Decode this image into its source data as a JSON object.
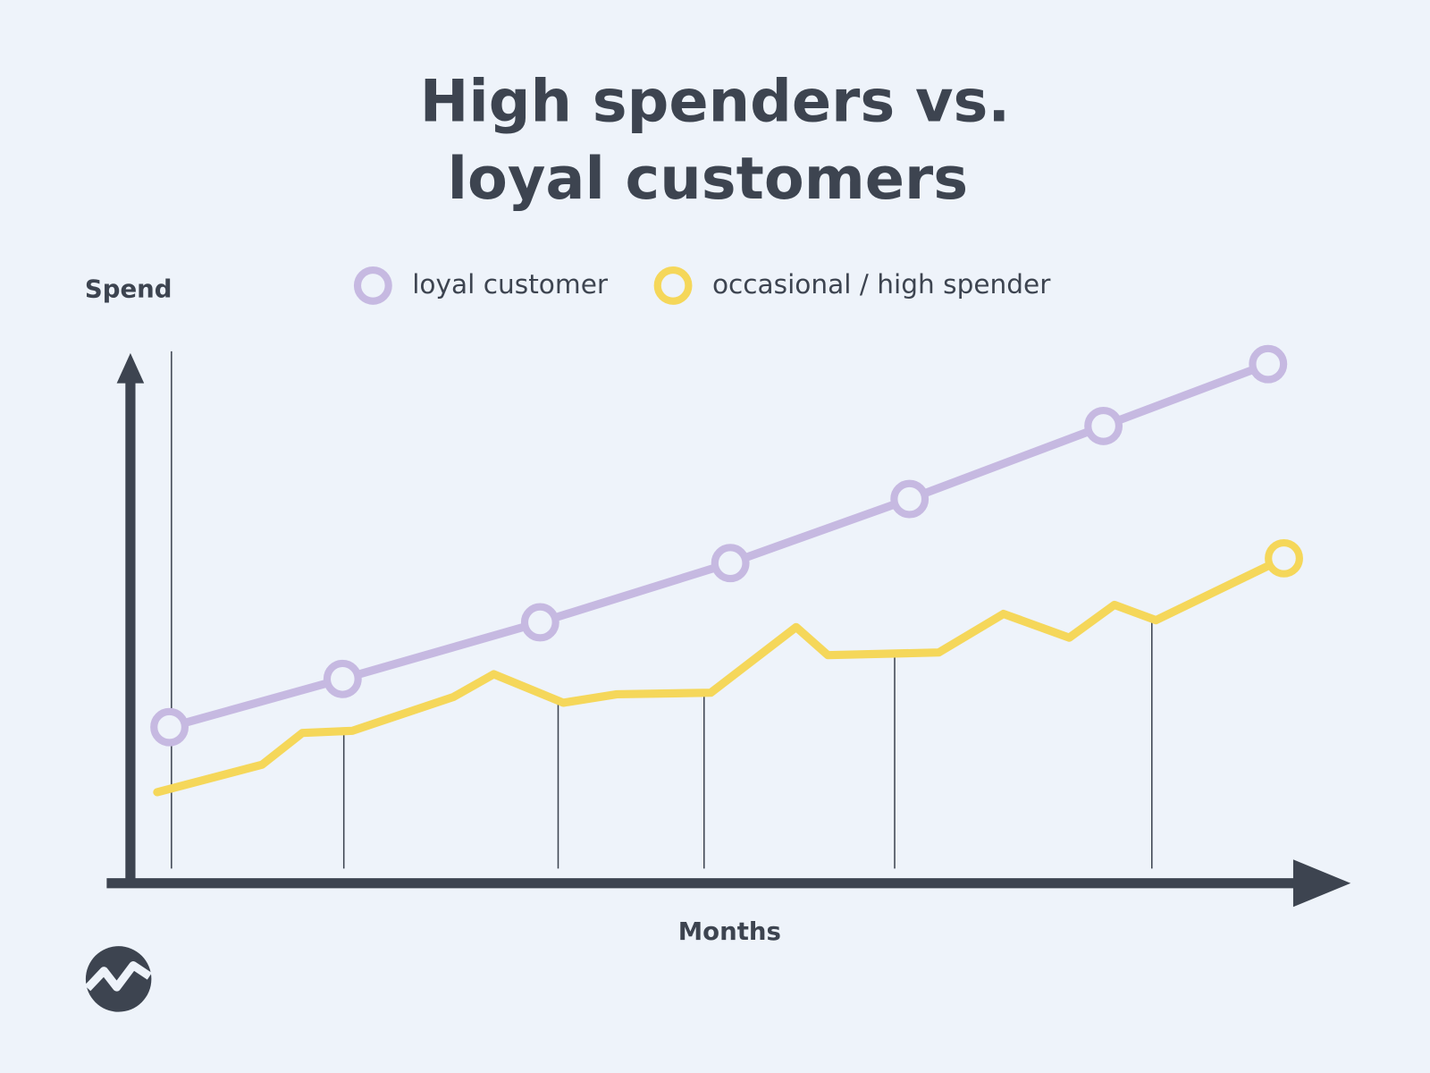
{
  "chart_data": {
    "type": "line",
    "title": [
      "High spenders vs.",
      "loyal customers"
    ],
    "ylabel": "Spend",
    "xlabel": "Months",
    "xlim": [
      0,
      100
    ],
    "ylim": [
      0,
      100
    ],
    "series": [
      {
        "name": "loyal customer",
        "color": "#c6b9e1",
        "marker": "every",
        "x": [
          3.2,
          17.4,
          33.6,
          49.2,
          63.9,
          79.8,
          93.3
        ],
        "values": [
          29.5,
          38.6,
          49.3,
          60.5,
          72.6,
          86.4,
          98.1
        ]
      },
      {
        "name": "occasional / high spender",
        "color": "#f5d75a",
        "marker": "end",
        "x": [
          2.2,
          10.8,
          14.1,
          18.2,
          26.5,
          29.8,
          35.5,
          39.9,
          47.6,
          54.6,
          57.2,
          66.3,
          71.6,
          77.0,
          80.7,
          84.1,
          94.6
        ],
        "values": [
          17.2,
          22.4,
          28.4,
          28.8,
          35.2,
          39.5,
          34.1,
          35.7,
          36.0,
          48.4,
          43.1,
          43.6,
          50.9,
          46.4,
          52.6,
          49.7,
          61.4
        ]
      }
    ]
  }
}
